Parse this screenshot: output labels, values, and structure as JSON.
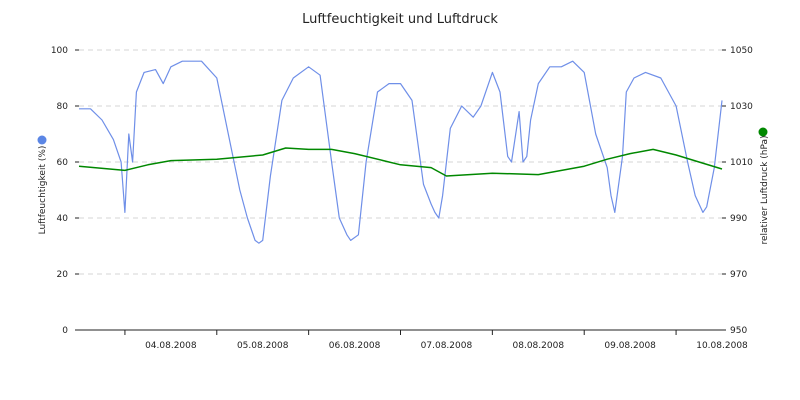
{
  "chart_data": {
    "type": "line",
    "title": "Luftfeuchtigkeit und Luftdruck",
    "grid": true,
    "x_axis": {
      "range": [
        "2008-08-03T12:00",
        "2008-08-10T12:00"
      ],
      "tick_labels": [
        "04.08.2008",
        "05.08.2008",
        "06.08.2008",
        "07.08.2008",
        "08.08.2008",
        "09.08.2008",
        "10.08.2008"
      ]
    },
    "y_left": {
      "label": "Luftfeuchtigkeit (%)",
      "range": [
        0,
        100
      ],
      "ticks": [
        "0",
        "20",
        "40",
        "60",
        "80",
        "100"
      ],
      "color": "#5b86e5"
    },
    "y_right": {
      "label": "relativer Luftdruck (hPa)",
      "range": [
        950,
        1050
      ],
      "ticks": [
        "950",
        "970",
        "990",
        "1010",
        "1030",
        "1050"
      ],
      "color": "#008800"
    },
    "series": [
      {
        "axis": "left",
        "color": "#6f8fe8",
        "x": [
          "2008-08-03T12:00",
          "2008-08-03T15:00",
          "2008-08-03T18:00",
          "2008-08-03T21:00",
          "2008-08-03T23:00",
          "2008-08-04T00:00",
          "2008-08-04T01:00",
          "2008-08-04T02:00",
          "2008-08-04T03:00",
          "2008-08-04T05:00",
          "2008-08-04T08:00",
          "2008-08-04T10:00",
          "2008-08-04T12:00",
          "2008-08-04T15:00",
          "2008-08-04T18:00",
          "2008-08-04T20:00",
          "2008-08-05T00:00",
          "2008-08-05T03:00",
          "2008-08-05T06:00",
          "2008-08-05T08:00",
          "2008-08-05T10:00",
          "2008-08-05T11:00",
          "2008-08-05T12:00",
          "2008-08-05T14:00",
          "2008-08-05T17:00",
          "2008-08-05T20:00",
          "2008-08-06T00:00",
          "2008-08-06T03:00",
          "2008-08-06T06:00",
          "2008-08-06T08:00",
          "2008-08-06T10:00",
          "2008-08-06T11:00",
          "2008-08-06T13:00",
          "2008-08-06T15:00",
          "2008-08-06T18:00",
          "2008-08-06T21:00",
          "2008-08-07T00:00",
          "2008-08-07T03:00",
          "2008-08-07T06:00",
          "2008-08-07T08:00",
          "2008-08-07T09:00",
          "2008-08-07T10:00",
          "2008-08-07T11:00",
          "2008-08-07T13:00",
          "2008-08-07T16:00",
          "2008-08-07T19:00",
          "2008-08-07T21:00",
          "2008-08-08T00:00",
          "2008-08-08T02:00",
          "2008-08-08T04:00",
          "2008-08-08T05:00",
          "2008-08-08T07:00",
          "2008-08-08T08:00",
          "2008-08-08T09:00",
          "2008-08-08T10:00",
          "2008-08-08T12:00",
          "2008-08-08T15:00",
          "2008-08-08T18:00",
          "2008-08-08T21:00",
          "2008-08-09T00:00",
          "2008-08-09T03:00",
          "2008-08-09T06:00",
          "2008-08-09T07:00",
          "2008-08-09T08:00",
          "2008-08-09T10:00",
          "2008-08-09T11:00",
          "2008-08-09T13:00",
          "2008-08-09T16:00",
          "2008-08-09T20:00",
          "2008-08-10T00:00",
          "2008-08-10T03:00",
          "2008-08-10T05:00",
          "2008-08-10T07:00",
          "2008-08-10T08:00",
          "2008-08-10T10:00",
          "2008-08-10T12:00"
        ],
        "values": [
          79,
          79,
          75,
          68,
          60,
          42,
          70,
          60,
          85,
          92,
          93,
          88,
          94,
          96,
          96,
          96,
          90,
          70,
          50,
          40,
          32,
          31,
          32,
          55,
          82,
          90,
          94,
          91,
          60,
          40,
          34,
          32,
          34,
          60,
          85,
          88,
          88,
          82,
          52,
          45,
          42,
          40,
          48,
          72,
          80,
          76,
          80,
          92,
          85,
          62,
          60,
          78,
          60,
          62,
          75,
          88,
          94,
          94,
          96,
          92,
          70,
          58,
          48,
          42,
          62,
          85,
          90,
          92,
          90,
          80,
          60,
          48,
          42,
          44,
          58,
          82
        ]
      },
      {
        "axis": "right",
        "color": "#008800",
        "x": [
          "2008-08-03T12:00",
          "2008-08-03T20:00",
          "2008-08-04T00:00",
          "2008-08-04T06:00",
          "2008-08-04T12:00",
          "2008-08-05T00:00",
          "2008-08-05T12:00",
          "2008-08-05T18:00",
          "2008-08-06T00:00",
          "2008-08-06T06:00",
          "2008-08-06T12:00",
          "2008-08-07T00:00",
          "2008-08-07T08:00",
          "2008-08-07T12:00",
          "2008-08-08T00:00",
          "2008-08-08T12:00",
          "2008-08-09T00:00",
          "2008-08-09T06:00",
          "2008-08-09T12:00",
          "2008-08-09T18:00",
          "2008-08-10T00:00",
          "2008-08-10T06:00",
          "2008-08-10T12:00"
        ],
        "values": [
          1008.5,
          1007.5,
          1007,
          1009,
          1010.5,
          1011,
          1012.5,
          1015,
          1014.5,
          1014.5,
          1013,
          1009,
          1008,
          1005,
          1006,
          1005.5,
          1008.5,
          1011,
          1013,
          1014.5,
          1012.5,
          1010,
          1007.5
        ]
      }
    ]
  }
}
